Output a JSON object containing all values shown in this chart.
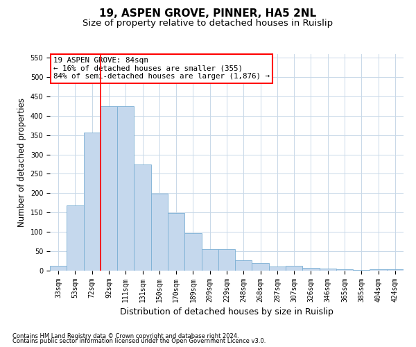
{
  "title": "19, ASPEN GROVE, PINNER, HA5 2NL",
  "subtitle": "Size of property relative to detached houses in Ruislip",
  "xlabel": "Distribution of detached houses by size in Ruislip",
  "ylabel": "Number of detached properties",
  "categories": [
    "33sqm",
    "53sqm",
    "72sqm",
    "92sqm",
    "111sqm",
    "131sqm",
    "150sqm",
    "170sqm",
    "189sqm",
    "209sqm",
    "229sqm",
    "248sqm",
    "268sqm",
    "287sqm",
    "307sqm",
    "326sqm",
    "346sqm",
    "365sqm",
    "385sqm",
    "404sqm",
    "424sqm"
  ],
  "values": [
    12,
    168,
    357,
    424,
    424,
    275,
    199,
    148,
    96,
    55,
    55,
    26,
    20,
    11,
    12,
    7,
    5,
    4,
    1,
    4,
    3
  ],
  "bar_color": "#c5d8ed",
  "bar_edge_color": "#7bafd4",
  "annotation_line1": "19 ASPEN GROVE: 84sqm",
  "annotation_line2": "← 16% of detached houses are smaller (355)",
  "annotation_line3": "84% of semi-detached houses are larger (1,876) →",
  "redline_x": 2.5,
  "ylim": [
    0,
    560
  ],
  "yticks": [
    0,
    50,
    100,
    150,
    200,
    250,
    300,
    350,
    400,
    450,
    500,
    550
  ],
  "footnote1": "Contains HM Land Registry data © Crown copyright and database right 2024.",
  "footnote2": "Contains public sector information licensed under the Open Government Licence v3.0.",
  "bg_color": "#ffffff",
  "grid_color": "#c8d8e8",
  "title_fontsize": 11,
  "subtitle_fontsize": 9.5,
  "tick_fontsize": 7,
  "ylabel_fontsize": 8.5,
  "xlabel_fontsize": 9,
  "annot_fontsize": 7.8
}
